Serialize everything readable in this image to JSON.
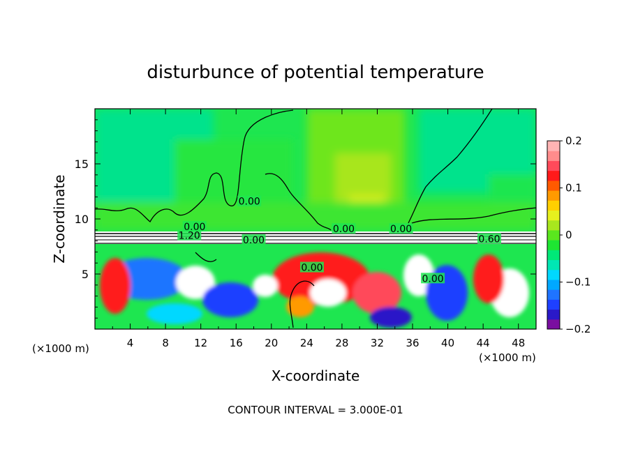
{
  "chart_data": {
    "type": "heatmap",
    "title": "disturbunce of potential temperature",
    "xlabel": "X-coordinate",
    "ylabel": "Z-coordinate",
    "x_unit_label": "(×1000 m)",
    "z_unit_label": "(×1000 m)",
    "xlim": [
      0,
      50
    ],
    "ylim": [
      0,
      20
    ],
    "x_ticks": [
      4,
      8,
      12,
      16,
      20,
      24,
      28,
      32,
      36,
      40,
      44,
      48
    ],
    "y_ticks": [
      5,
      10,
      15
    ],
    "colorbar": {
      "vmin": -0.2,
      "vmax": 0.2,
      "ticks": [
        {
          "value": 0.2,
          "label": "0.2"
        },
        {
          "value": 0.1,
          "label": "0.1"
        },
        {
          "value": 0.0,
          "label": "0"
        },
        {
          "value": -0.1,
          "label": "−0.1"
        },
        {
          "value": -0.2,
          "label": "−0.2"
        }
      ],
      "colors": [
        "#7a0fa0",
        "#2a19c8",
        "#1e40ff",
        "#1f74ff",
        "#00a8ff",
        "#00d8ff",
        "#00e6b4",
        "#00e878",
        "#1ee632",
        "#5ae61e",
        "#a8e61e",
        "#e6f01e",
        "#ffd000",
        "#ff9a00",
        "#ff5a00",
        "#ff1a1a",
        "#ff4a5a",
        "#ff8c8c",
        "#ffb4b4"
      ]
    },
    "contour_labels": [
      {
        "text": "0.00",
        "x": 17.5,
        "z": 11.6
      },
      {
        "text": "0.00",
        "x": 11.3,
        "z": 9.3
      },
      {
        "text": "1.20",
        "x": 10.7,
        "z": 8.5
      },
      {
        "text": "0.00",
        "x": 28.2,
        "z": 9.1
      },
      {
        "text": "0.00",
        "x": 34.7,
        "z": 9.1
      },
      {
        "text": "0.60",
        "x": 44.7,
        "z": 8.2
      },
      {
        "text": "0.00",
        "x": 18.0,
        "z": 8.1
      },
      {
        "text": "0.00",
        "x": 24.6,
        "z": 5.6
      },
      {
        "text": "0.00",
        "x": 38.3,
        "z": 4.6
      }
    ],
    "footer": "CONTOUR INTERVAL = 3.000E-01"
  }
}
